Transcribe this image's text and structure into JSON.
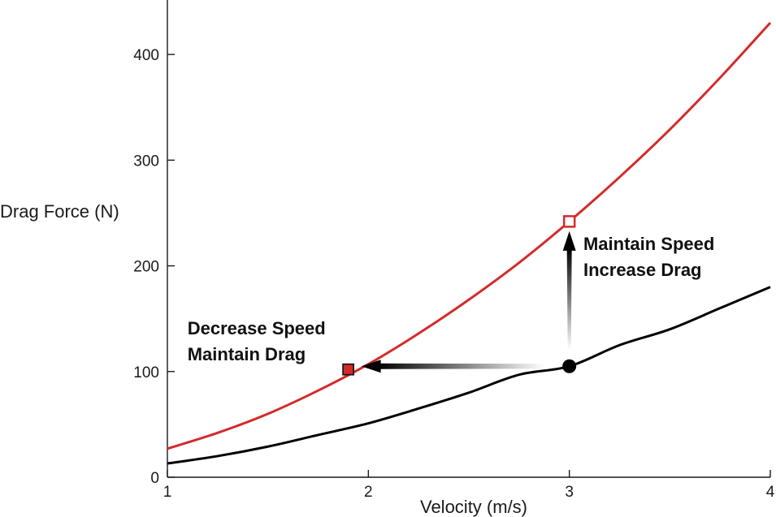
{
  "chart_data": {
    "type": "line",
    "title": "",
    "xlabel": "Velocity (m/s)",
    "ylabel": "Drag Force (N)",
    "xlim": [
      1,
      4
    ],
    "ylim": [
      0,
      450
    ],
    "xticks": [
      1,
      2,
      3,
      4
    ],
    "yticks": [
      0,
      100,
      200,
      300,
      400
    ],
    "grid": false,
    "series": [
      {
        "color": "#d42a2a",
        "x": [
          1,
          1.25,
          1.5,
          1.75,
          2,
          2.25,
          2.5,
          2.75,
          3,
          3.25,
          3.5,
          3.75,
          4
        ],
        "y": [
          27,
          42,
          60,
          82,
          107,
          136,
          168,
          203,
          242,
          284,
          329,
          378,
          430
        ]
      },
      {
        "color": "#000000",
        "x": [
          1,
          1.25,
          1.5,
          1.75,
          2,
          2.25,
          2.5,
          2.75,
          3,
          3.25,
          3.5,
          3.75,
          4
        ],
        "y": [
          13,
          20,
          29,
          40,
          51,
          65,
          80,
          97,
          105,
          125,
          140,
          160,
          180
        ]
      }
    ],
    "points": [
      {
        "name": "start",
        "x": 3,
        "y": 105,
        "marker": "filled-circle",
        "color": "#000000"
      },
      {
        "name": "maintain-speed",
        "x": 3,
        "y": 242,
        "marker": "open-square",
        "color": "#d42a2a"
      },
      {
        "name": "maintain-drag",
        "x": 1.9,
        "y": 102,
        "marker": "filled-square",
        "color": "#d42a2a"
      }
    ],
    "annotations": [
      {
        "lines": [
          "Maintain Speed",
          "Increase Drag"
        ],
        "x": 3.07,
        "y": 215
      },
      {
        "lines": [
          "Decrease Speed",
          "Maintain Drag"
        ],
        "x": 1.1,
        "y": 135
      }
    ]
  }
}
